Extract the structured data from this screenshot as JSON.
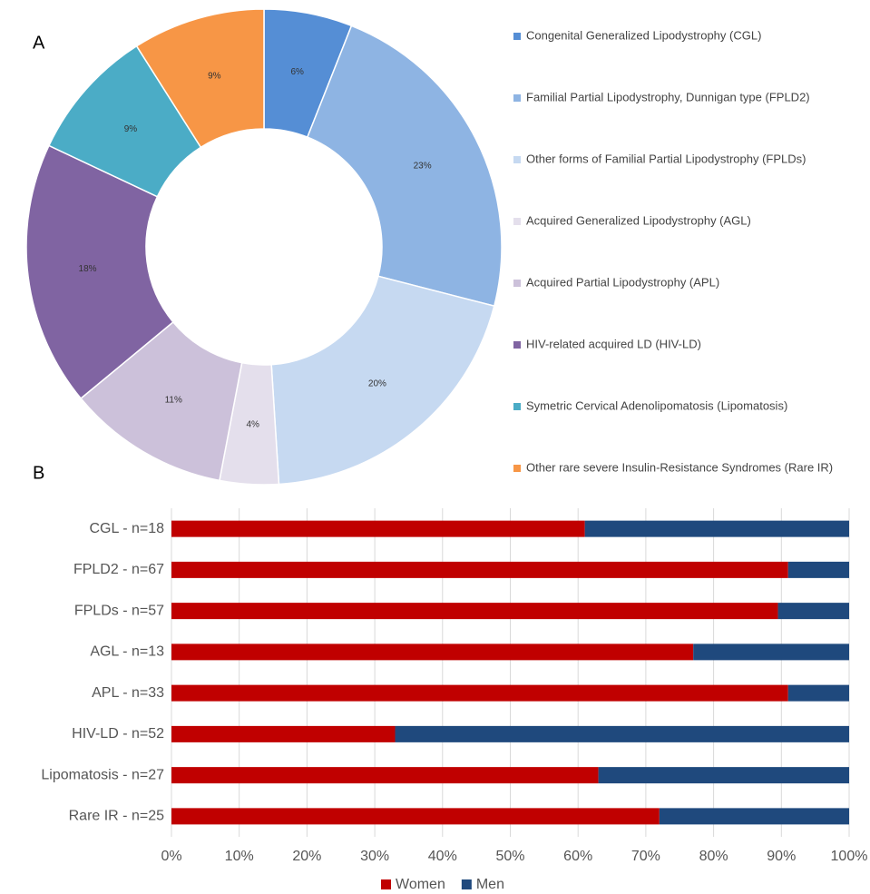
{
  "chart_data": [
    {
      "type": "donut",
      "label": "A",
      "categories": [
        "Congenital Generalized Lipodystrophy (CGL)",
        "Familial Partial Lipodystrophy, Dunnigan type (FPLD2)",
        "Other forms of Familial Partial Lipodystrophy (FPLDs)",
        "Acquired Generalized Lipodystrophy (AGL)",
        "Acquired Partial Lipodystrophy (APL)",
        "HIV-related acquired LD (HIV-LD)",
        "Symetric Cervical Adenolipomatosis (Lipomatosis)",
        "Other rare severe Insulin-Resistance Syndromes (Rare IR)"
      ],
      "values": [
        6,
        23,
        20,
        4,
        11,
        18,
        9,
        9
      ],
      "value_labels": [
        "6%",
        "23%",
        "20%",
        "4%",
        "11%",
        "18%",
        "9%",
        "9%"
      ],
      "colors": [
        "#558ed5",
        "#8eb4e3",
        "#c6d9f1",
        "#e4dfec",
        "#ccc1da",
        "#8064a2",
        "#4bacc6",
        "#f79646"
      ],
      "legend": "right"
    },
    {
      "type": "bar",
      "label": "B",
      "horizontal": true,
      "stacked": true,
      "grid": true,
      "legend": "bottom",
      "categories": [
        "CGL - n=18",
        "FPLD2 - n=67",
        "FPLDs - n=57",
        "AGL - n=13",
        "APL - n=33",
        "HIV-LD - n=52",
        "Lipomatosis - n=27",
        "Rare IR - n=25"
      ],
      "series": [
        {
          "name": "Women",
          "color": "#c00000",
          "values": [
            61,
            91,
            89.5,
            77,
            91,
            33,
            63,
            72
          ]
        },
        {
          "name": "Men",
          "color": "#1f497d",
          "values": [
            39,
            9,
            10.5,
            23,
            9,
            67,
            37,
            28
          ]
        }
      ],
      "xlim": [
        0,
        100
      ],
      "xticks": [
        {
          "value": 0,
          "label": "0%"
        },
        {
          "value": 10,
          "label": "10%"
        },
        {
          "value": 20,
          "label": "20%"
        },
        {
          "value": 30,
          "label": "30%"
        },
        {
          "value": 40,
          "label": "40%"
        },
        {
          "value": 50,
          "label": "50%"
        },
        {
          "value": 60,
          "label": "60%"
        },
        {
          "value": 70,
          "label": "70%"
        },
        {
          "value": 80,
          "label": "80%"
        },
        {
          "value": 90,
          "label": "90%"
        },
        {
          "value": 100,
          "label": "100%"
        }
      ]
    }
  ]
}
